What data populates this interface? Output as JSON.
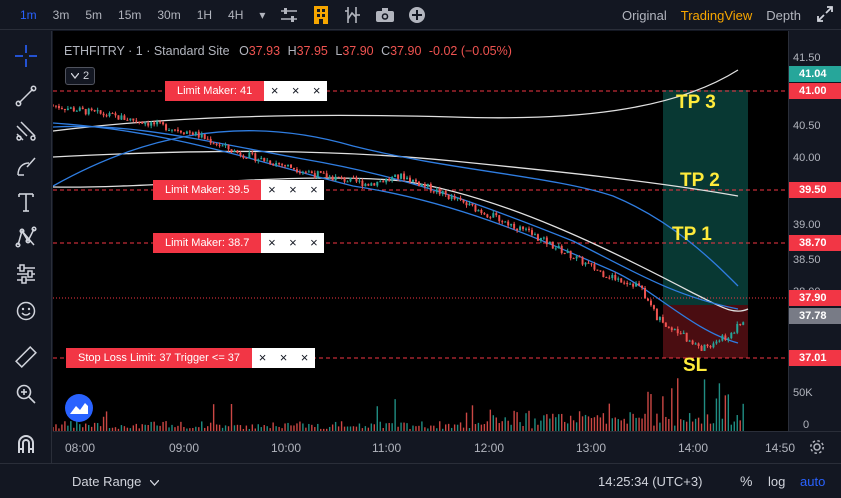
{
  "toolbar": {
    "timeframes": [
      "1m",
      "3m",
      "5m",
      "15m",
      "30m",
      "1H",
      "4H"
    ],
    "active_timeframe": "1m",
    "chevron": "▾",
    "right_tabs": [
      "Original",
      "TradingView",
      "Depth"
    ],
    "active_tab": "TradingView"
  },
  "legend": {
    "symbol": "ETHFITRY · 1 · Standard Site",
    "o_label": "O",
    "o": "37.93",
    "h_label": "H",
    "h": "37.95",
    "l_label": "L",
    "l": "37.90",
    "c_label": "C",
    "c": "37.90",
    "change": "-0.02 (−0.05%)",
    "collapse_count": "2"
  },
  "orders": [
    {
      "label": "Limit Maker: 41",
      "price": 41.0
    },
    {
      "label": "Limit Maker: 39.5",
      "price": 39.5
    },
    {
      "label": "Limit Maker: 38.7",
      "price": 38.7
    },
    {
      "label": "Stop Loss Limit: 37 Trigger <= 37",
      "price": 37.01
    }
  ],
  "order_close": "×",
  "targets": [
    "TP 3",
    "TP 2",
    "TP 1",
    "SL"
  ],
  "price_axis": {
    "labels": [
      "41.50",
      "40.50",
      "40.00",
      "39.00",
      "38.50",
      "38.00"
    ],
    "volume_labels": [
      "50K",
      "0"
    ],
    "tags": [
      {
        "text": "41.04",
        "color": "#26a69a"
      },
      {
        "text": "41.00",
        "color": "#f23645"
      },
      {
        "text": "39.50",
        "color": "#f23645"
      },
      {
        "text": "38.70",
        "color": "#f23645"
      },
      {
        "text": "37.90",
        "color": "#f23645"
      },
      {
        "text": "37.78",
        "color": "#787b86"
      },
      {
        "text": "37.01",
        "color": "#f23645"
      }
    ]
  },
  "time_axis": {
    "labels": [
      "08:00",
      "09:00",
      "10:00",
      "11:00",
      "12:00",
      "13:00",
      "14:00",
      "14:50"
    ]
  },
  "bottom": {
    "date_range": "Date Range",
    "clock": "14:25:34 (UTC+3)",
    "percent": "%",
    "log": "log",
    "auto": "auto"
  },
  "colors": {
    "up": "#26a69a",
    "down": "#ef5350",
    "order_line": "#f23645",
    "accent": "#2962ff",
    "active_tab": "#f7a600",
    "target_text": "#ffeb3b"
  },
  "chart_data": {
    "type": "candlestick",
    "symbol": "ETHFITRY",
    "interval": "1",
    "x_range": [
      "07:50",
      "14:50"
    ],
    "y_range": [
      36.5,
      41.6
    ],
    "series": [
      {
        "name": "close",
        "x": [
          "07:50",
          "08:15",
          "08:40",
          "09:10",
          "09:35",
          "10:00",
          "10:25",
          "10:50",
          "11:10",
          "11:30",
          "11:55",
          "12:20",
          "12:45",
          "13:05",
          "13:25",
          "13:35",
          "13:45",
          "14:00",
          "14:15",
          "14:25"
        ],
        "values": [
          40.65,
          40.55,
          40.45,
          40.3,
          40.05,
          39.9,
          39.75,
          39.65,
          39.75,
          39.55,
          39.3,
          39.05,
          38.75,
          38.5,
          38.35,
          37.95,
          37.8,
          37.55,
          37.7,
          37.9
        ]
      }
    ],
    "last_price": 37.9,
    "last_close_marker": 37.78,
    "volume_axis": [
      0,
      50000
    ]
  }
}
